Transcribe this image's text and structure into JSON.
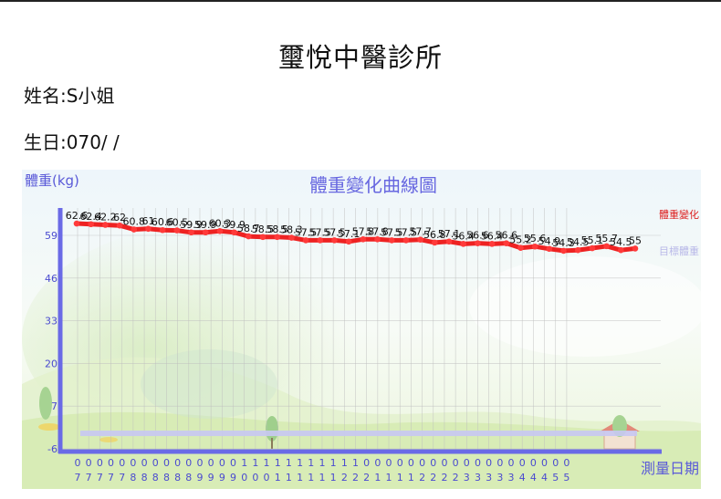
{
  "clinic": {
    "title": "璽悅中醫診所"
  },
  "patient": {
    "name_label": "姓名:",
    "name_value": "S小姐",
    "birth_label": "生日:",
    "birth_value": "070/    /"
  },
  "chart_data": {
    "type": "line",
    "title": "體重變化曲線圖",
    "ylabel": "體重(kg)",
    "xlabel": "測量日期",
    "yticks": [
      59,
      46,
      33,
      20,
      7,
      -6
    ],
    "ylim": [
      -6,
      65
    ],
    "grid": true,
    "legend_position": "right",
    "x_top_digits": [
      "0",
      "0",
      "0",
      "0",
      "0",
      "0",
      "0",
      "0",
      "0",
      "0",
      "0",
      "0",
      "0",
      "0",
      "0",
      "1",
      "1",
      "1",
      "1",
      "1",
      "1",
      "1",
      "1",
      "1",
      "1",
      "1",
      "0",
      "0",
      "0",
      "0",
      "0",
      "0",
      "0",
      "0",
      "0",
      "0",
      "0",
      "0",
      "0",
      "0",
      "0",
      "0",
      "0",
      "0",
      "0"
    ],
    "x_bottom_digits": [
      "7",
      "7",
      "7",
      "7",
      "7",
      "8",
      "8",
      "8",
      "8",
      "8",
      "8",
      "9",
      "9",
      "9",
      "9",
      "0",
      "0",
      "0",
      "1",
      "1",
      "1",
      "1",
      "1",
      "1",
      "2",
      "2",
      "2",
      "1",
      "1",
      "1",
      "1",
      "2",
      "2",
      "2",
      "2",
      "3",
      "3",
      "3",
      "3",
      "3",
      "4",
      "4",
      "4",
      "5",
      "5"
    ],
    "series": [
      {
        "name": "體重變化",
        "color": "#ee2222",
        "values": [
          62.6,
          62.4,
          62.2,
          62,
          60.8,
          61,
          60.6,
          60.5,
          59.9,
          59.9,
          60.3,
          59.9,
          58.7,
          58.5,
          58.5,
          58.3,
          57.5,
          57.5,
          57.5,
          57.1,
          57.8,
          57.8,
          57.5,
          57.5,
          57.7,
          56.8,
          57.1,
          56.4,
          56.6,
          56.4,
          56.6,
          55.2,
          55.6,
          54.9,
          54.3,
          54.5,
          55.1,
          55.7,
          54.5,
          55
        ]
      },
      {
        "name": "目標體重",
        "color": "#c8c8f2",
        "values": []
      }
    ]
  }
}
